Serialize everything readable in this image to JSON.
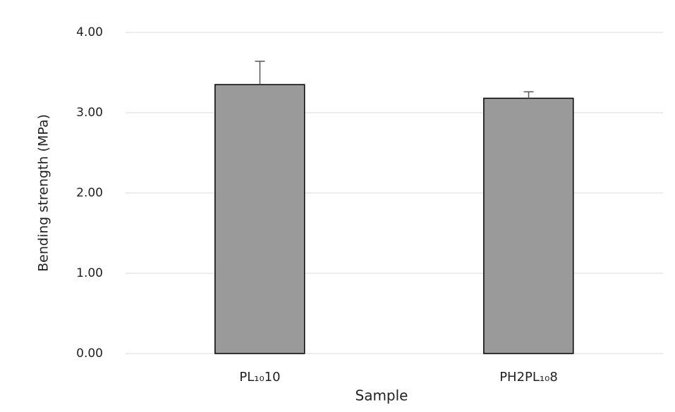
{
  "chart_data": {
    "type": "bar",
    "y_label": "Bending  strength (MPa)",
    "x_label": "Sample",
    "categories": [
      "PL₁₀10",
      "PH2PL₁₀8"
    ],
    "values": [
      3.35,
      3.18
    ],
    "errors": [
      0.29,
      0.08
    ],
    "color": "#9a9a9a",
    "ylim": [
      0,
      4
    ],
    "yticks": [
      {
        "value": 0,
        "label": "0.00"
      },
      {
        "value": 1,
        "label": "1.00"
      },
      {
        "value": 2,
        "label": "2.00"
      },
      {
        "value": 3,
        "label": "3.00"
      },
      {
        "value": 4,
        "label": "4.00"
      }
    ],
    "grid": true
  }
}
